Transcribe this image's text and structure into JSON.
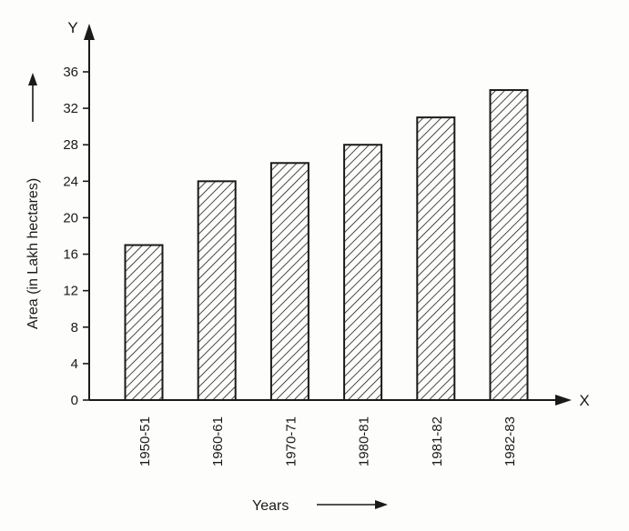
{
  "chart_data": {
    "type": "bar",
    "categories": [
      "1950-51",
      "1960-61",
      "1970-71",
      "1980-81",
      "1981-82",
      "1982-83"
    ],
    "values": [
      17,
      24,
      26,
      28,
      31,
      34
    ],
    "ylim": [
      0,
      36
    ],
    "yticks": [
      "0",
      "4",
      "8",
      "12",
      "16",
      "20",
      "24",
      "28",
      "32",
      "36"
    ],
    "xlabel": "Years",
    "ylabel": "Area (in Lakh hectares)",
    "x_axis_letter": "X",
    "y_axis_letter": "Y",
    "bar_fill": "hatched",
    "colors": {
      "ink": "#1a1a1a",
      "background": "#fdfdfb"
    }
  }
}
